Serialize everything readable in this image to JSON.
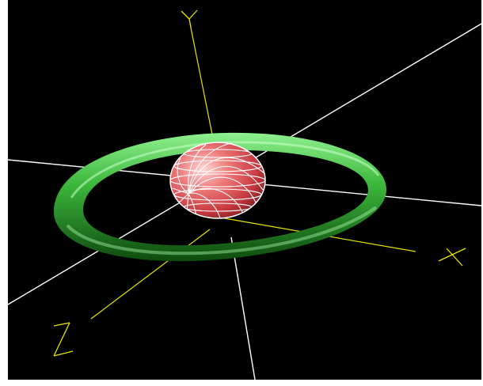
{
  "scene": {
    "background_color": "#000000",
    "axes": {
      "x": {
        "label": "X",
        "color": "#e6e600"
      },
      "y": {
        "label": "Y",
        "color": "#e6e600"
      },
      "z": {
        "label": "Z",
        "color": "#e6e600"
      }
    },
    "grid_line_color": "#ffffff",
    "objects": [
      {
        "name": "torus",
        "shape": "torus",
        "color": "#3fbf3f",
        "render_style": "smooth-shaded"
      },
      {
        "name": "sphere",
        "shape": "sphere",
        "color": "#e8555a",
        "render_style": "shaded-wireframe",
        "wire_color": "#ffffff"
      }
    ]
  }
}
